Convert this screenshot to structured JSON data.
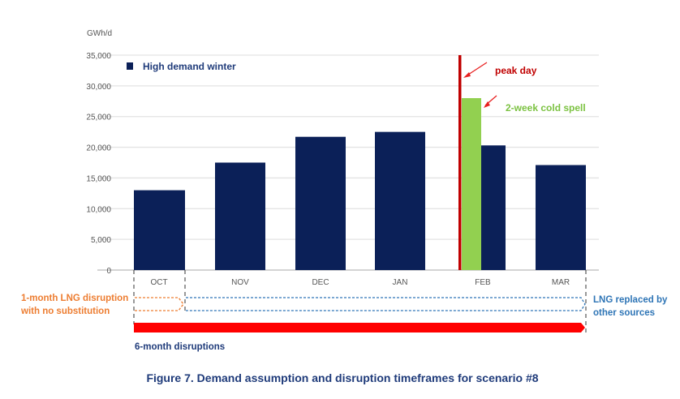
{
  "chart_data": {
    "type": "bar",
    "ylabel": "GWh/d",
    "ylim": [
      0,
      35000
    ],
    "yticks": [
      "0",
      "5,000",
      "10,000",
      "15,000",
      "20,000",
      "25,000",
      "30,000",
      "35,000"
    ],
    "ytick_values": [
      0,
      5000,
      10000,
      15000,
      20000,
      25000,
      30000,
      35000
    ],
    "grid": true,
    "categories": [
      "OCT",
      "NOV",
      "DEC",
      "JAN",
      "FEB",
      "MAR"
    ],
    "series": [
      {
        "name": "High demand winter",
        "values": [
          13000,
          17500,
          21700,
          22500,
          20300,
          17100
        ],
        "color": "#0b2058"
      }
    ],
    "cold_spell": {
      "label": "2-week cold spell",
      "category": "FEB",
      "value": 28000,
      "color": "#92d050"
    },
    "peak_day": {
      "label": "peak day",
      "category": "FEB",
      "value": 35000,
      "color": "#c00000"
    },
    "legend": {
      "label": "High demand winter",
      "placement": "top-left"
    },
    "timeframes": [
      {
        "label": "1-month LNG disruption with no substitution",
        "line1": "1-month LNG disruption",
        "line2": "with no substitution",
        "from": "OCT",
        "to": "OCT",
        "color": "#ed7d31"
      },
      {
        "label": "LNG replaced by other sources",
        "line1": "LNG replaced by",
        "line2": "other sources",
        "from": "NOV",
        "to": "MAR",
        "color": "#2e75b6"
      },
      {
        "label": "6-month disruptions",
        "from": "OCT",
        "to": "MAR",
        "color": "#ff0000"
      }
    ],
    "caption": "Figure 7. Demand assumption and disruption timeframes for scenario #8"
  }
}
